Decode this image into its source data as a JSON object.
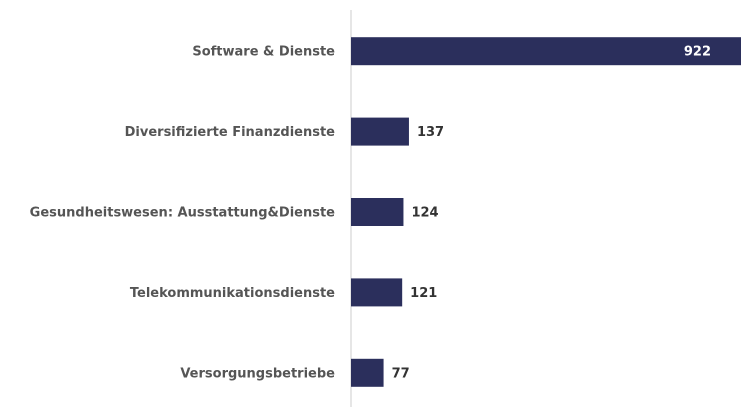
{
  "chart_data": {
    "type": "bar",
    "orientation": "horizontal",
    "categories": [
      "Software & Dienste",
      "Diversifizierte Finanzdienste",
      "Gesundheitswesen: Ausstattung&Dienste",
      "Telekommunikationsdienste",
      "Versorgungsbetriebe"
    ],
    "values": [
      922,
      137,
      124,
      121,
      77
    ],
    "color": "#2b2f5c",
    "xlim": [
      0,
      922
    ]
  }
}
